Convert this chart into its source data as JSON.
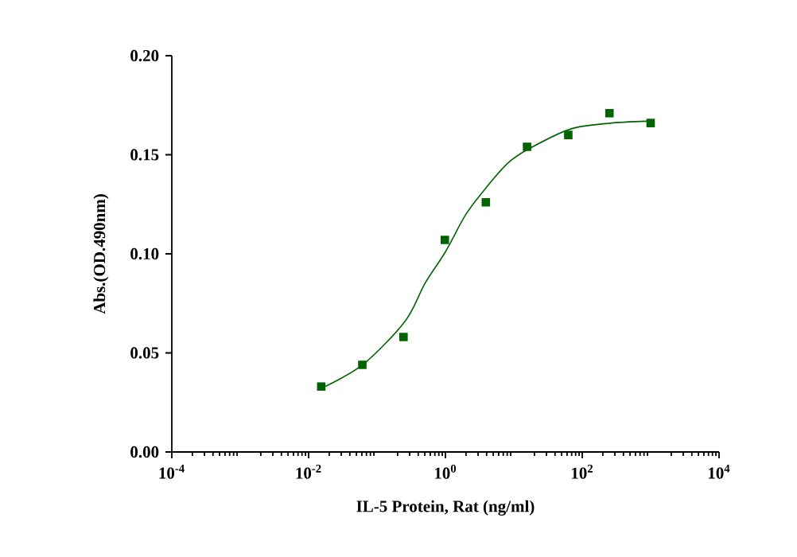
{
  "chart_data": {
    "type": "scatter",
    "xlabel": "IL-5 Protein, Rat  (ng/ml)",
    "ylabel": "Abs.(OD.490nm)",
    "log": "x",
    "xlim": [
      0.0001,
      10000
    ],
    "ylim": [
      0,
      0.2
    ],
    "xticks": [
      {
        "value": 0.0001,
        "label": "10$^{-4}$"
      },
      {
        "value": 0.01,
        "label": "10$^{-2}$"
      },
      {
        "value": 1,
        "label": "10$^{0}$"
      },
      {
        "value": 100,
        "label": "10$^{2}$"
      },
      {
        "value": 10000,
        "label": "10$^{4}$"
      }
    ],
    "yticks": [
      {
        "value": 0,
        "label": "0.00"
      },
      {
        "value": 0.05,
        "label": "0.05"
      },
      {
        "value": 0.1,
        "label": "0.10"
      },
      {
        "value": 0.15,
        "label": "0.15"
      },
      {
        "value": 0.2,
        "label": "0.20"
      }
    ],
    "series": [
      {
        "marker": "square",
        "color": "#006400",
        "x": [
          0.0153,
          0.061,
          0.244,
          0.98,
          3.9,
          15.6,
          62.5,
          250,
          1000
        ],
        "values": [
          0.033,
          0.044,
          0.058,
          0.107,
          0.126,
          0.154,
          0.16,
          0.171,
          0.166
        ]
      },
      {
        "type": "line",
        "marker": "none",
        "line_style": "solid",
        "color": "#006400",
        "x": [
          0.0151,
          0.0617,
          0.257,
          0.501,
          1.0,
          2.0,
          4.07,
          8.32,
          16.6,
          67.6,
          269,
          1096
        ],
        "values": [
          0.032,
          0.044,
          0.066,
          0.085,
          0.101,
          0.12,
          0.134,
          0.146,
          0.153,
          0.163,
          0.166,
          0.167
        ]
      }
    ]
  }
}
